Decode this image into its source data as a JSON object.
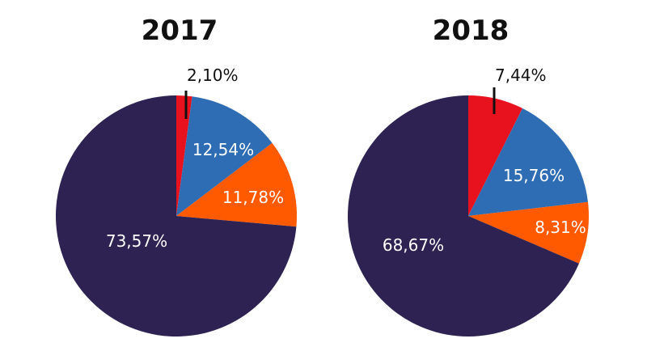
{
  "chart_data": [
    {
      "type": "pie",
      "title": "2017",
      "categories": [
        "",
        "",
        "",
        ""
      ],
      "values": [
        2.1,
        12.54,
        11.78,
        73.57
      ],
      "labels": [
        "2,10%",
        "12,54%",
        "11,78%",
        "73,57%"
      ],
      "colors": [
        "#e8111e",
        "#2e6db4",
        "#ff5a00",
        "#2d2252"
      ],
      "start": "12 o'clock",
      "direction": "clockwise"
    },
    {
      "type": "pie",
      "title": "2018",
      "categories": [
        "",
        "",
        "",
        ""
      ],
      "values": [
        7.44,
        15.76,
        8.31,
        68.67
      ],
      "labels": [
        "7,44%",
        "15,76%",
        "8,31%",
        "68,67%"
      ],
      "colors": [
        "#e8111e",
        "#2e6db4",
        "#ff5a00",
        "#2d2252"
      ],
      "start": "12 o'clock",
      "direction": "clockwise"
    }
  ]
}
